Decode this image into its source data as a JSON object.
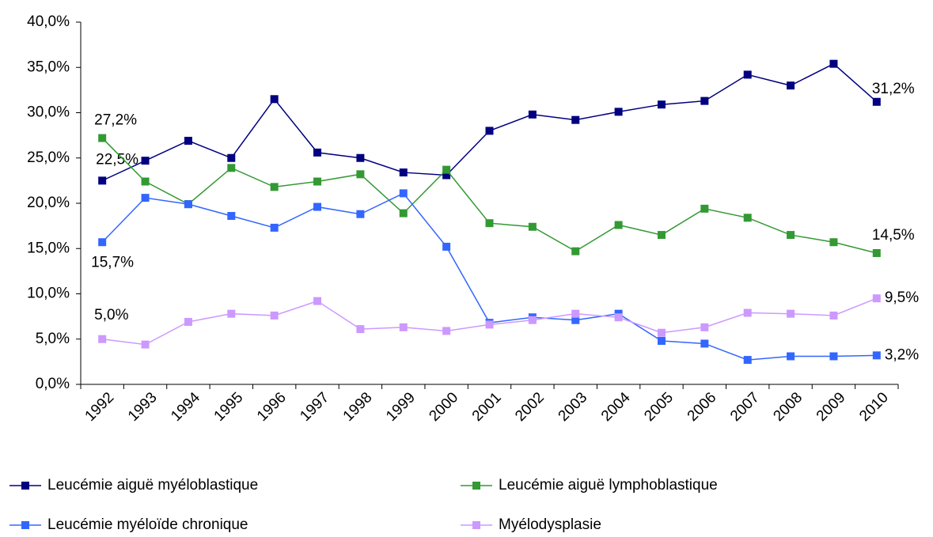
{
  "chart_data": {
    "type": "line",
    "categories": [
      "1992",
      "1993",
      "1994",
      "1995",
      "1996",
      "1997",
      "1998",
      "1999",
      "2000",
      "2001",
      "2002",
      "2003",
      "2004",
      "2005",
      "2006",
      "2007",
      "2008",
      "2009",
      "2010"
    ],
    "ylim": [
      0,
      40
    ],
    "yticks": [
      {
        "value": 0,
        "label": "0,0%"
      },
      {
        "value": 5,
        "label": "5,0%"
      },
      {
        "value": 10,
        "label": "10,0%"
      },
      {
        "value": 15,
        "label": "15,0%"
      },
      {
        "value": 20,
        "label": "20,0%"
      },
      {
        "value": 25,
        "label": "25,0%"
      },
      {
        "value": 30,
        "label": "30,0%"
      },
      {
        "value": 35,
        "label": "35,0%"
      },
      {
        "value": 40,
        "label": "40,0%"
      }
    ],
    "legend": "bottom",
    "series": [
      {
        "name": "Leucémie aiguë myéloblastique",
        "color": "#000080",
        "values": [
          22.5,
          24.7,
          26.9,
          25.0,
          31.5,
          25.6,
          25.0,
          23.4,
          23.1,
          28.0,
          29.8,
          29.2,
          30.1,
          30.9,
          31.3,
          34.2,
          33.0,
          35.4,
          31.2
        ],
        "value_labels": [
          "22,5%",
          null,
          null,
          null,
          null,
          null,
          null,
          null,
          null,
          null,
          null,
          null,
          null,
          null,
          null,
          null,
          null,
          null,
          "31,2%"
        ]
      },
      {
        "name": "Leucémie aiguë lymphoblastique",
        "color": "#339933",
        "values": [
          27.2,
          22.4,
          19.9,
          23.9,
          21.8,
          22.4,
          23.2,
          18.9,
          23.7,
          17.8,
          17.4,
          14.7,
          17.6,
          16.5,
          19.4,
          18.4,
          16.5,
          15.7,
          14.5
        ],
        "value_labels": [
          "27,2%",
          null,
          null,
          null,
          null,
          null,
          null,
          null,
          null,
          null,
          null,
          null,
          null,
          null,
          null,
          null,
          null,
          null,
          "14,5%"
        ]
      },
      {
        "name": "Leucémie myéloïde chronique",
        "color": "#3366ff",
        "values": [
          15.7,
          20.6,
          19.9,
          18.6,
          17.3,
          19.6,
          18.8,
          21.1,
          15.2,
          6.8,
          7.4,
          7.1,
          7.8,
          4.8,
          4.5,
          2.7,
          3.1,
          3.1,
          3.2
        ],
        "value_labels": [
          "15,7%",
          null,
          null,
          null,
          null,
          null,
          null,
          null,
          null,
          null,
          null,
          null,
          null,
          null,
          null,
          null,
          null,
          null,
          "3,2%"
        ]
      },
      {
        "name": "Myélodysplasie",
        "color": "#cc99ff",
        "values": [
          5.0,
          4.4,
          6.9,
          7.8,
          7.6,
          9.2,
          6.1,
          6.3,
          5.9,
          6.6,
          7.1,
          7.8,
          7.4,
          5.7,
          6.3,
          7.9,
          7.8,
          7.6,
          9.5
        ],
        "value_labels": [
          "5,0%",
          null,
          null,
          null,
          null,
          null,
          null,
          null,
          null,
          null,
          null,
          null,
          null,
          null,
          null,
          null,
          null,
          null,
          "9,5%"
        ]
      }
    ]
  }
}
